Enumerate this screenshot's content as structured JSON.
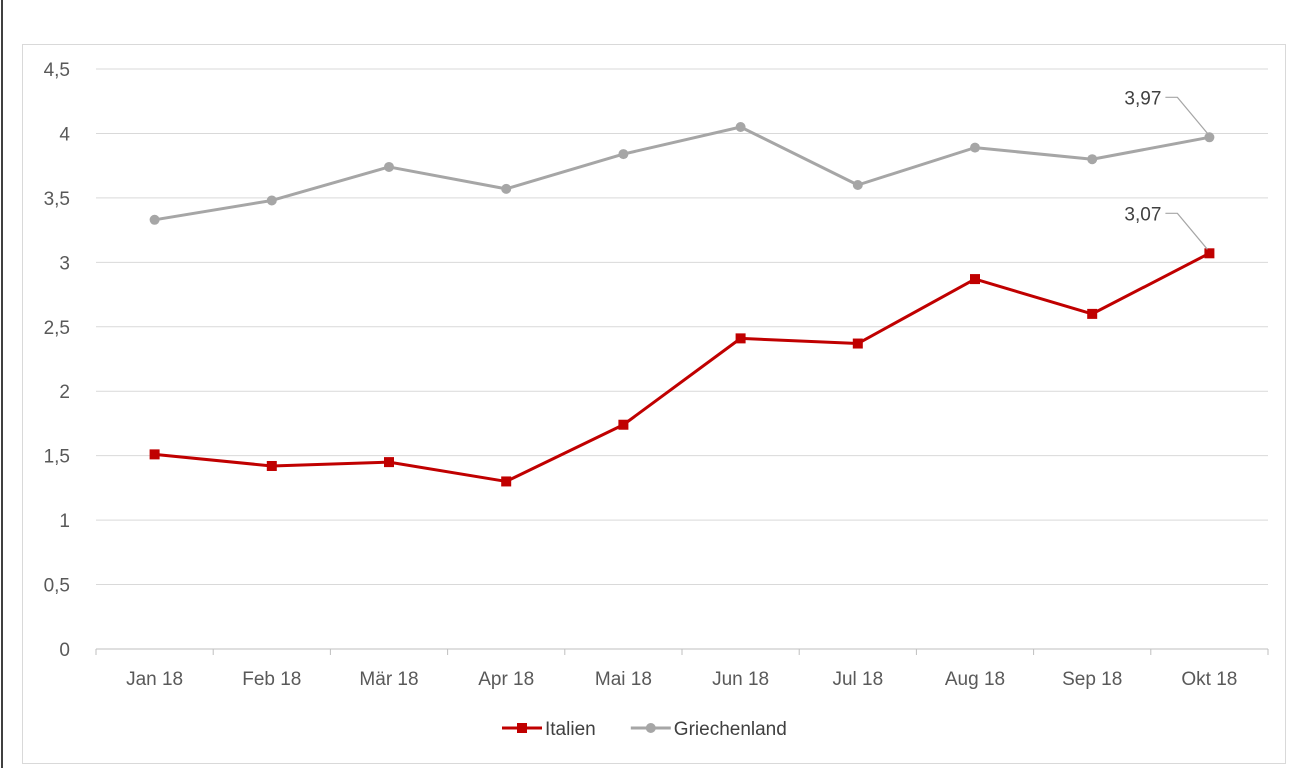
{
  "chart_data": {
    "type": "line",
    "categories": [
      "Jan 18",
      "Feb 18",
      "Mär 18",
      "Apr 18",
      "Mai 18",
      "Jun 18",
      "Jul 18",
      "Aug 18",
      "Sep 18",
      "Okt 18"
    ],
    "ylim": [
      0,
      4.5
    ],
    "yticks": [
      "0",
      "0,5",
      "1",
      "1,5",
      "2",
      "2,5",
      "3",
      "3,5",
      "4",
      "4,5"
    ],
    "ytick_values": [
      0,
      0.5,
      1,
      1.5,
      2,
      2.5,
      3,
      3.5,
      4,
      4.5
    ],
    "grid": true,
    "legend_position": "bottom",
    "series": [
      {
        "name": "Italien",
        "color": "#c00000",
        "marker": "square",
        "values": [
          1.51,
          1.42,
          1.45,
          1.3,
          1.74,
          2.41,
          2.37,
          2.87,
          2.6,
          3.07
        ],
        "end_label": "3,07"
      },
      {
        "name": "Griechenland",
        "color": "#a6a6a6",
        "marker": "circle",
        "values": [
          3.33,
          3.48,
          3.74,
          3.57,
          3.84,
          4.05,
          3.6,
          3.89,
          3.8,
          3.97
        ],
        "end_label": "3,97"
      }
    ]
  }
}
